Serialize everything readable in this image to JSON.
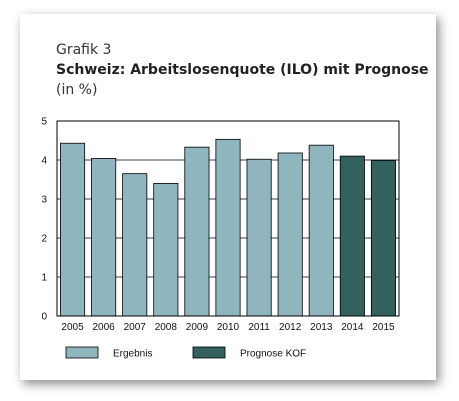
{
  "caption": {
    "label": "Grafik 3",
    "title": "Schweiz: Arbeitslosenquote (ILO) mit Prognose",
    "unit": "(in %)"
  },
  "colors": {
    "result": "#8fb5be",
    "forecast": "#33615f"
  },
  "chart_data": {
    "type": "bar",
    "categories": [
      "2005",
      "2006",
      "2007",
      "2008",
      "2009",
      "2010",
      "2011",
      "2012",
      "2013",
      "2014",
      "2015"
    ],
    "series": [
      {
        "name": "Ergebnis",
        "values": [
          4.43,
          4.04,
          3.65,
          3.4,
          4.33,
          4.53,
          4.02,
          4.18,
          4.38,
          null,
          null
        ]
      },
      {
        "name": "Prognose KOF",
        "values": [
          null,
          null,
          null,
          null,
          null,
          null,
          null,
          null,
          null,
          4.1,
          3.99
        ]
      }
    ],
    "ylim": [
      0,
      5
    ],
    "yticks": [
      "0",
      "1",
      "2",
      "3",
      "4",
      "5"
    ],
    "grid": "horizontal",
    "legend_position": "bottom"
  }
}
